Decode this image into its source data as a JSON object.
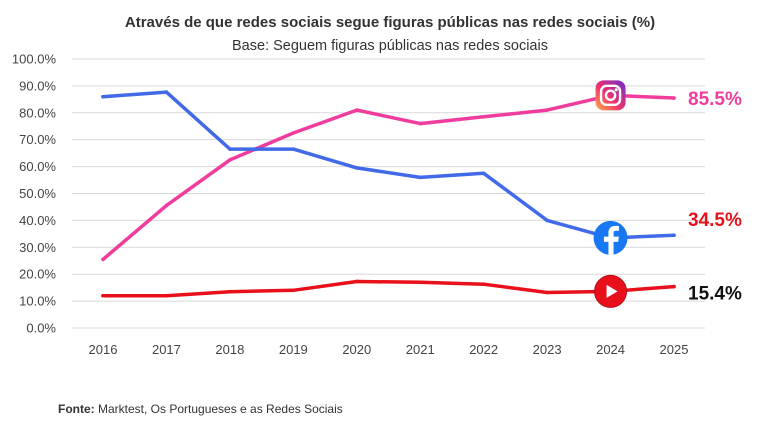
{
  "chart_data": {
    "type": "line",
    "title": "Através de que redes sociais segue  figuras públicas nas redes sociais (%)",
    "subtitle": "Base: Seguem figuras públicas nas redes sociais",
    "categories": [
      "2016",
      "2017",
      "2018",
      "2019",
      "2020",
      "2021",
      "2022",
      "2023",
      "2024",
      "2025"
    ],
    "ylim": [
      0,
      100
    ],
    "yticks": [
      "0.0%",
      "10.0%",
      "20.0%",
      "30.0%",
      "40.0%",
      "50.0%",
      "60.0%",
      "70.0%",
      "80.0%",
      "90.0%",
      "100.0%"
    ],
    "grid": true,
    "series": [
      {
        "name": "Instagram",
        "icon": "instagram-icon",
        "color": "#f03c9c",
        "values": [
          25.5,
          45.5,
          62.5,
          72.5,
          81.0,
          76.0,
          78.5,
          81.0,
          86.5,
          85.5
        ],
        "end_label": "85.5%",
        "end_label_color": "#f03c9c"
      },
      {
        "name": "Facebook",
        "icon": "facebook-icon",
        "color": "#4169e8",
        "values": [
          86.0,
          87.7,
          66.5,
          66.5,
          59.5,
          56.0,
          57.5,
          40.0,
          33.5,
          34.5
        ],
        "end_label": "34.5%",
        "end_label_color": "#e8101a"
      },
      {
        "name": "YouTube",
        "icon": "youtube-icon",
        "color": "#e8101a",
        "values": [
          12.0,
          12.0,
          13.5,
          14.0,
          17.3,
          17.0,
          16.3,
          13.2,
          13.6,
          15.4
        ],
        "end_label": "15.4%",
        "end_label_color": "#111111"
      }
    ],
    "source_label": "Fonte:",
    "source_text": " Marktest, Os Portugueses e as Redes Sociais"
  }
}
